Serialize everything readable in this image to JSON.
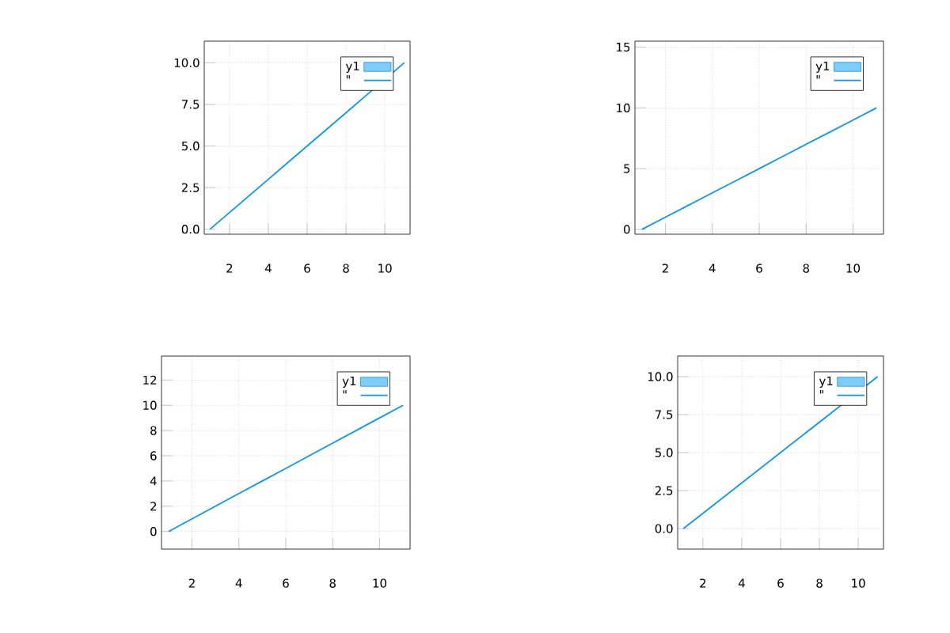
{
  "chart_data": [
    {
      "type": "line",
      "x": [
        1,
        2,
        3,
        4,
        5,
        6,
        7,
        8,
        9,
        10,
        11
      ],
      "xlim": [
        0.7,
        11.3
      ],
      "ylim": [
        -0.3,
        11.3
      ],
      "xticks": [
        2,
        4,
        6,
        8,
        10
      ],
      "yticks": [
        {
          "value": 0,
          "label": "0.0"
        },
        {
          "value": 2.5,
          "label": "2.5"
        },
        {
          "value": 5,
          "label": "5.0"
        },
        {
          "value": 7.5,
          "label": "7.5"
        },
        {
          "value": 10,
          "label": "10.0"
        }
      ],
      "grid": true,
      "legend": "top right",
      "series": [
        {
          "name": "y1",
          "type": "area",
          "color": "#80ccf8",
          "values": [
            null,
            null,
            null,
            null,
            null,
            null,
            null,
            null,
            null,
            null,
            null
          ]
        },
        {
          "name": "\"",
          "color": "#0d96f0",
          "values": [
            0,
            1,
            2,
            3,
            4,
            5,
            6,
            7,
            8,
            9,
            10
          ]
        }
      ]
    },
    {
      "type": "line",
      "x": [
        1,
        2,
        3,
        4,
        5,
        6,
        7,
        8,
        9,
        10,
        11
      ],
      "xlim": [
        0.7,
        11.3
      ],
      "ylim": [
        -0.4,
        15.5
      ],
      "xticks": [
        2,
        4,
        6,
        8,
        10
      ],
      "yticks": [
        0,
        5,
        10,
        15
      ],
      "grid": true,
      "legend": "top right",
      "series": [
        {
          "name": "y1",
          "type": "area",
          "color": "#80ccf8",
          "values": [
            null,
            null,
            null,
            null,
            null,
            null,
            null,
            null,
            null,
            null,
            null
          ]
        },
        {
          "name": "\"",
          "color": "#0d96f0",
          "values": [
            0,
            1,
            2,
            3,
            4,
            5,
            6,
            7,
            8,
            9,
            10
          ]
        }
      ]
    },
    {
      "type": "line",
      "x": [
        1,
        2,
        3,
        4,
        5,
        6,
        7,
        8,
        9,
        10,
        11
      ],
      "xlim": [
        0.7,
        11.3
      ],
      "ylim": [
        -1.4,
        13.9
      ],
      "xticks": [
        2,
        4,
        6,
        8,
        10
      ],
      "yticks": [
        0,
        2,
        4,
        6,
        8,
        10,
        12
      ],
      "grid": true,
      "legend": "top right",
      "series": [
        {
          "name": "y1",
          "type": "area",
          "color": "#80ccf8",
          "values": [
            null,
            null,
            null,
            null,
            null,
            null,
            null,
            null,
            null,
            null,
            null
          ]
        },
        {
          "name": "\"",
          "color": "#0d96f0",
          "values": [
            0,
            1,
            2,
            3,
            4,
            5,
            6,
            7,
            8,
            9,
            10
          ]
        }
      ]
    },
    {
      "type": "line",
      "x": [
        1,
        2,
        3,
        4,
        5,
        6,
        7,
        8,
        9,
        10,
        11
      ],
      "xlim": [
        0.7,
        11.3
      ],
      "ylim": [
        -1.35,
        11.35
      ],
      "xticks": [
        2,
        4,
        6,
        8,
        10
      ],
      "yticks": [
        {
          "value": 0,
          "label": "0.0"
        },
        {
          "value": 2.5,
          "label": "2.5"
        },
        {
          "value": 5,
          "label": "5.0"
        },
        {
          "value": 7.5,
          "label": "7.5"
        },
        {
          "value": 10,
          "label": "10.0"
        }
      ],
      "grid": true,
      "legend": "top right",
      "series": [
        {
          "name": "y1",
          "type": "area",
          "color": "#80ccf8",
          "values": [
            null,
            null,
            null,
            null,
            null,
            null,
            null,
            null,
            null,
            null,
            null
          ]
        },
        {
          "name": "\"",
          "color": "#0d96f0",
          "values": [
            0,
            1,
            2,
            3,
            4,
            5,
            6,
            7,
            8,
            9,
            10
          ]
        }
      ]
    }
  ]
}
